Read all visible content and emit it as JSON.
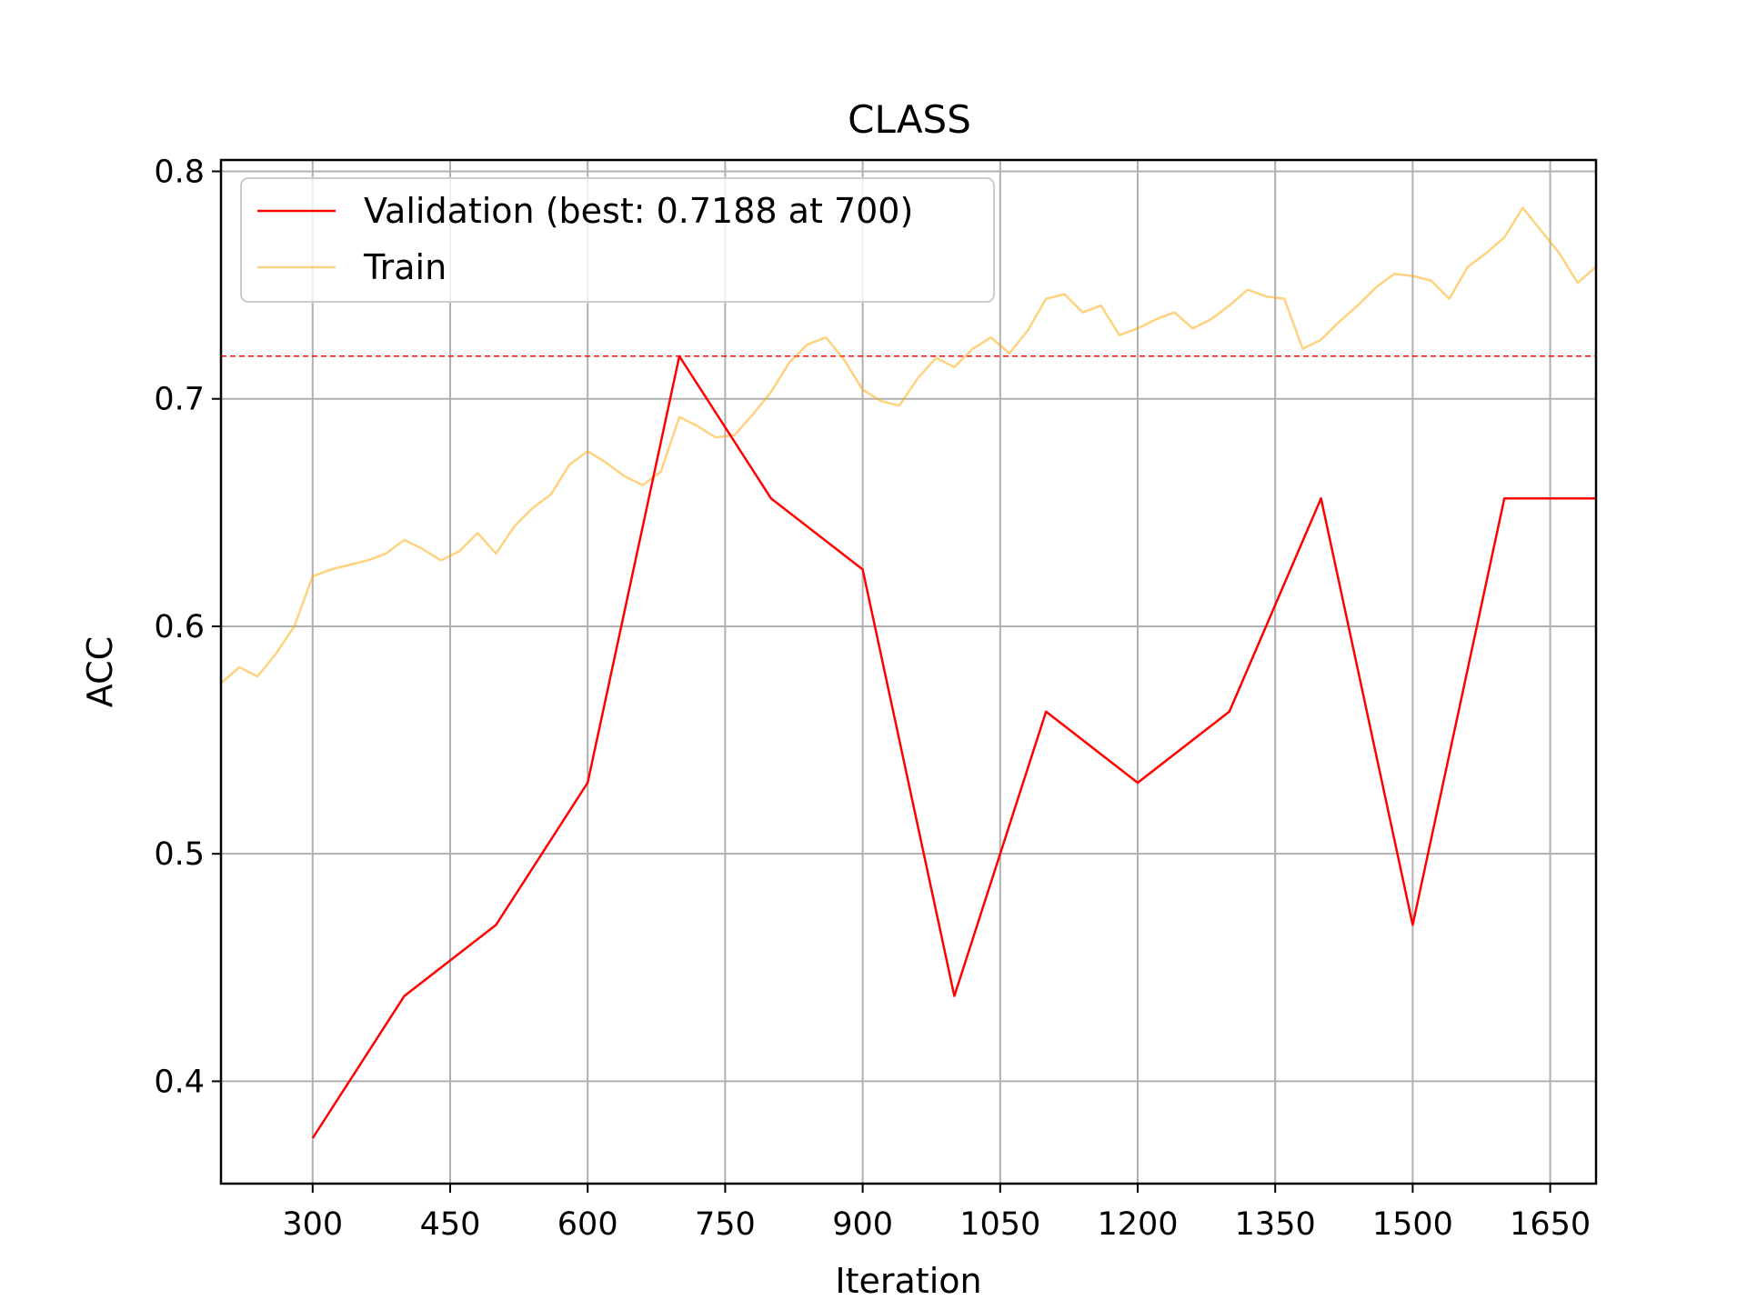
{
  "chart_data": {
    "type": "line",
    "title": "CLASS",
    "xlabel": "Iteration",
    "ylabel": "ACC",
    "xlim": [
      200,
      1700
    ],
    "ylim": [
      0.355,
      0.805
    ],
    "xticks": [
      300,
      450,
      600,
      750,
      900,
      1050,
      1200,
      1350,
      1500,
      1650
    ],
    "yticks": [
      0.4,
      0.5,
      0.6,
      0.7,
      0.8
    ],
    "grid": true,
    "legend_position": "top-left",
    "best_value": 0.7188,
    "colors": {
      "validation": "#ff0000",
      "train": "#ffa500",
      "grid": "#b0b0b0"
    },
    "series": [
      {
        "name": "Validation (best: 0.7188 at 700)",
        "x": [
          300,
          400,
          500,
          600,
          700,
          800,
          900,
          1000,
          1100,
          1200,
          1300,
          1400,
          1500,
          1600,
          1700
        ],
        "values": [
          0.375,
          0.4375,
          0.46875,
          0.53125,
          0.71875,
          0.65625,
          0.625,
          0.4375,
          0.5625,
          0.53125,
          0.5625,
          0.65625,
          0.46875,
          0.65625,
          0.65625
        ]
      },
      {
        "name": "Train",
        "x": [
          200,
          220,
          240,
          260,
          280,
          300,
          320,
          340,
          360,
          380,
          400,
          420,
          440,
          460,
          480,
          500,
          520,
          540,
          560,
          580,
          600,
          620,
          640,
          660,
          680,
          700,
          720,
          740,
          760,
          780,
          800,
          820,
          840,
          860,
          880,
          900,
          920,
          940,
          960,
          980,
          1000,
          1020,
          1040,
          1060,
          1080,
          1100,
          1120,
          1140,
          1160,
          1180,
          1200,
          1220,
          1240,
          1260,
          1280,
          1300,
          1320,
          1340,
          1360,
          1380,
          1400,
          1420,
          1440,
          1460,
          1480,
          1500,
          1520,
          1540,
          1560,
          1580,
          1600,
          1620,
          1640,
          1660,
          1680,
          1700
        ],
        "values": [
          0.575,
          0.582,
          0.578,
          0.588,
          0.6,
          0.622,
          0.625,
          0.627,
          0.629,
          0.632,
          0.638,
          0.634,
          0.629,
          0.633,
          0.641,
          0.632,
          0.644,
          0.652,
          0.658,
          0.671,
          0.677,
          0.672,
          0.666,
          0.662,
          0.668,
          0.692,
          0.688,
          0.683,
          0.684,
          0.693,
          0.703,
          0.716,
          0.724,
          0.727,
          0.717,
          0.704,
          0.699,
          0.697,
          0.709,
          0.718,
          0.714,
          0.722,
          0.727,
          0.72,
          0.73,
          0.744,
          0.746,
          0.738,
          0.741,
          0.728,
          0.731,
          0.735,
          0.738,
          0.731,
          0.735,
          0.741,
          0.748,
          0.745,
          0.744,
          0.722,
          0.726,
          0.734,
          0.741,
          0.749,
          0.755,
          0.754,
          0.752,
          0.744,
          0.758,
          0.764,
          0.771,
          0.784,
          0.774,
          0.764,
          0.751,
          0.758
        ]
      }
    ]
  }
}
